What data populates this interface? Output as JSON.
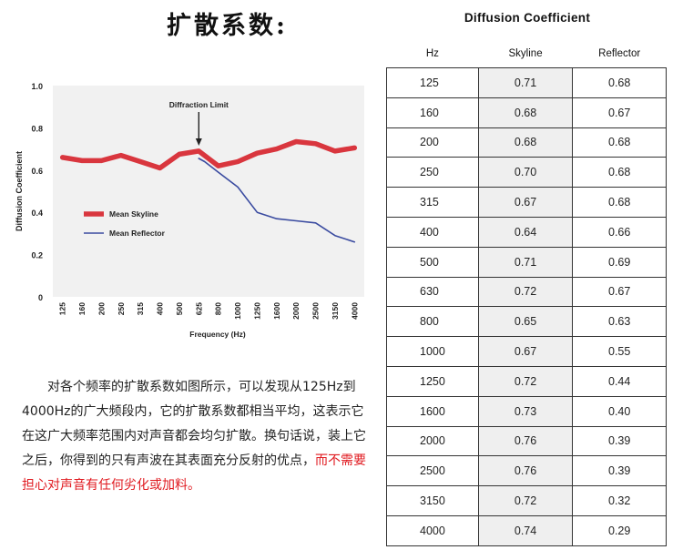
{
  "page": {
    "title": "扩散系数:",
    "paragraph_main": "对各个频率的扩散系数如图所示，可以发现从125Hz到4000Hz的广大频段内，它的扩散系数都相当平均，这表示它在这广大频率范围内对声音都会均匀扩散。换句话说，装上它之后，你得到的只有声波在其表面充分反射的优点，",
    "paragraph_highlight": "而不需要担心对声音有任何劣化或加料。",
    "highlight_color": "#e0191f"
  },
  "chart_data": {
    "type": "line",
    "title": "",
    "xlabel": "Frequency (Hz)",
    "ylabel": "Diffusion Coefficient",
    "categories": [
      "125",
      "160",
      "200",
      "250",
      "315",
      "400",
      "500",
      "625",
      "630",
      "800",
      "1000",
      "1250",
      "1600",
      "2000",
      "2500",
      "3150",
      "4000"
    ],
    "x_ticks": [
      "125",
      "160",
      "200",
      "250",
      "315",
      "400",
      "500",
      "625",
      "800",
      "1000",
      "1250",
      "1600",
      "2000",
      "2500",
      "3150",
      "4000"
    ],
    "y_ticks": [
      "0",
      "0.2",
      "0.4",
      "0.6",
      "0.8",
      "1.0"
    ],
    "ylim": [
      0,
      1.0
    ],
    "annotation": "Diffraction Limit",
    "annotation_at": "625",
    "grid": false,
    "legend_position": "center-left",
    "series": [
      {
        "name": "Mean Skyline",
        "color": "#d9363e",
        "points": [
          [
            "125",
            0.66
          ],
          [
            "160",
            0.645
          ],
          [
            "200",
            0.645
          ],
          [
            "250",
            0.67
          ],
          [
            "315",
            0.64
          ],
          [
            "400",
            0.61
          ],
          [
            "500",
            0.675
          ],
          [
            "625",
            0.69
          ],
          [
            "800",
            0.62
          ],
          [
            "1000",
            0.64
          ],
          [
            "1250",
            0.68
          ],
          [
            "1600",
            0.7
          ],
          [
            "2000",
            0.735
          ],
          [
            "2500",
            0.725
          ],
          [
            "3150",
            0.69
          ],
          [
            "4000",
            0.705
          ]
        ]
      },
      {
        "name": "Mean Reflector",
        "color": "#3a4ba0",
        "points": [
          [
            "625",
            0.655
          ],
          [
            "630",
            0.64
          ],
          [
            "800",
            0.59
          ],
          [
            "1000",
            0.52
          ],
          [
            "1250",
            0.4
          ],
          [
            "1600",
            0.37
          ],
          [
            "2000",
            0.36
          ],
          [
            "2500",
            0.35
          ],
          [
            "3150",
            0.29
          ],
          [
            "4000",
            0.26
          ]
        ]
      }
    ]
  },
  "table": {
    "title": "Diffusion Coefficient",
    "headers": [
      "Hz",
      "Skyline",
      "Reflector"
    ],
    "rows": [
      [
        "125",
        "0.71",
        "0.68"
      ],
      [
        "160",
        "0.68",
        "0.67"
      ],
      [
        "200",
        "0.68",
        "0.68"
      ],
      [
        "250",
        "0.70",
        "0.68"
      ],
      [
        "315",
        "0.67",
        "0.68"
      ],
      [
        "400",
        "0.64",
        "0.66"
      ],
      [
        "500",
        "0.71",
        "0.69"
      ],
      [
        "630",
        "0.72",
        "0.67"
      ],
      [
        "800",
        "0.65",
        "0.63"
      ],
      [
        "1000",
        "0.67",
        "0.55"
      ],
      [
        "1250",
        "0.72",
        "0.44"
      ],
      [
        "1600",
        "0.73",
        "0.40"
      ],
      [
        "2000",
        "0.76",
        "0.39"
      ],
      [
        "2500",
        "0.76",
        "0.39"
      ],
      [
        "3150",
        "0.72",
        "0.32"
      ],
      [
        "4000",
        "0.74",
        "0.29"
      ]
    ]
  }
}
